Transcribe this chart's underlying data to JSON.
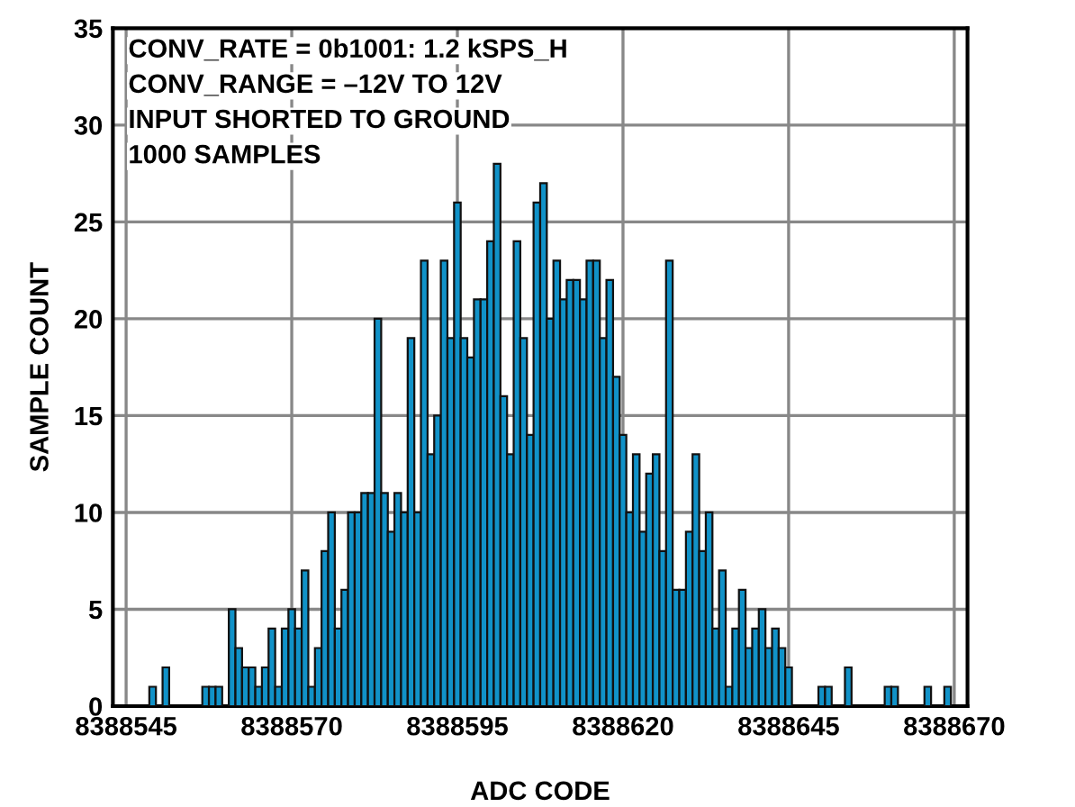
{
  "chart_data": {
    "type": "histogram",
    "xlabel": "ADC CODE",
    "ylabel": "SAMPLE COUNT",
    "annotations": [
      "CONV_RATE = 0b1001: 1.2 kSPS_H",
      "CONV_RANGE = –12V TO 12V",
      "INPUT SHORTED TO GROUND",
      "1000 SAMPLES"
    ],
    "bins": [
      8388544.5,
      8388545.5,
      8388546.5,
      8388547.5,
      8388548.5,
      8388549.5,
      8388550.5,
      8388551.5,
      8388552.5,
      8388553.5,
      8388554.5,
      8388555.5,
      8388556.5,
      8388557.5,
      8388558.5,
      8388559.5,
      8388560.5,
      8388561.5,
      8388562.5,
      8388563.5,
      8388564.5,
      8388565.5,
      8388566.5,
      8388567.5,
      8388568.5,
      8388569.5,
      8388570.5,
      8388571.5,
      8388572.5,
      8388573.5,
      8388574.5,
      8388575.5,
      8388576.5,
      8388577.5,
      8388578.5,
      8388579.5,
      8388580.5,
      8388581.5,
      8388582.5,
      8388583.5,
      8388584.5,
      8388585.5,
      8388586.5,
      8388587.5,
      8388588.5,
      8388589.5,
      8388590.5,
      8388591.5,
      8388592.5,
      8388593.5,
      8388594.5,
      8388595.5,
      8388596.5,
      8388597.5,
      8388598.5,
      8388599.5,
      8388600.5,
      8388601.5,
      8388602.5,
      8388603.5,
      8388604.5,
      8388605.5,
      8388606.5,
      8388607.5,
      8388608.5,
      8388609.5,
      8388610.5,
      8388611.5,
      8388612.5,
      8388613.5,
      8388614.5,
      8388615.5,
      8388616.5,
      8388617.5,
      8388618.5,
      8388619.5,
      8388620.5,
      8388621.5,
      8388622.5,
      8388623.5,
      8388624.5,
      8388625.5,
      8388626.5,
      8388627.5,
      8388628.5,
      8388629.5,
      8388630.5,
      8388631.5,
      8388632.5,
      8388633.5,
      8388634.5,
      8388635.5,
      8388636.5,
      8388637.5,
      8388638.5,
      8388639.5,
      8388640.5,
      8388641.5,
      8388642.5,
      8388643.5,
      8388644.5,
      8388645.5,
      8388646.5,
      8388647.5,
      8388648.5,
      8388649.5,
      8388650.5,
      8388651.5,
      8388652.5,
      8388653.5,
      8388654.5,
      8388655.5,
      8388656.5,
      8388657.5,
      8388658.5,
      8388659.5,
      8388660.5,
      8388661.5,
      8388662.5,
      8388663.5,
      8388664.5,
      8388665.5,
      8388666.5,
      8388667.5,
      8388668.5,
      8388669.5,
      8388670.5
    ],
    "values": [
      0,
      0,
      0,
      0,
      1,
      0,
      2,
      0,
      0,
      0,
      0,
      0,
      1,
      1,
      1,
      0,
      5,
      3,
      2,
      2,
      1,
      2,
      4,
      1,
      4,
      5,
      4,
      7,
      1,
      3,
      8,
      10,
      4,
      6,
      10,
      10,
      11,
      11,
      20,
      11,
      9,
      11,
      10,
      19,
      10,
      23,
      13,
      15,
      23,
      19,
      26,
      19,
      18,
      21,
      21,
      24,
      28,
      16,
      13,
      24,
      19,
      14,
      26,
      27,
      20,
      23,
      21,
      22,
      22,
      21,
      23,
      23,
      19,
      22,
      17,
      14,
      10,
      13,
      9,
      12,
      13,
      8,
      23,
      6,
      6,
      9,
      13,
      8,
      10,
      4,
      7,
      1,
      4,
      6,
      3,
      4,
      5,
      3,
      4,
      3,
      2,
      0,
      0,
      0,
      0,
      1,
      1,
      0,
      0,
      2,
      0,
      0,
      0,
      0,
      0,
      1,
      1,
      0,
      0,
      0,
      0,
      1,
      0,
      0,
      1,
      0
    ],
    "color": "#1192c8",
    "xlim": [
      8388543,
      8388672
    ],
    "xticks": [
      8388545,
      8388570,
      8388595,
      8388620,
      8388645,
      8388670
    ],
    "ylim": [
      0,
      35
    ],
    "yticks": [
      0,
      5,
      10,
      15,
      20,
      25,
      30,
      35
    ],
    "grid": true
  }
}
